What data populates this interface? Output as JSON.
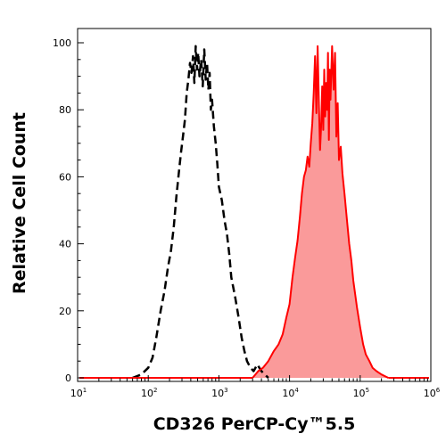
{
  "chart_data": {
    "type": "area",
    "xlabel": "CD326 PerCP-Cy™5.5",
    "ylabel": "Relative Cell Count",
    "x_scale": "log",
    "xlim": [
      10,
      1000000
    ],
    "ylim": [
      0,
      100
    ],
    "x_ticks": [
      {
        "value": 10,
        "base": "10",
        "exp": "1"
      },
      {
        "value": 100,
        "base": "10",
        "exp": "2"
      },
      {
        "value": 1000,
        "base": "10",
        "exp": "3"
      },
      {
        "value": 10000,
        "base": "10",
        "exp": "4"
      },
      {
        "value": 100000,
        "base": "10",
        "exp": "5"
      },
      {
        "value": 1000000,
        "base": "10",
        "exp": "6"
      }
    ],
    "y_ticks": [
      "0",
      "20",
      "40",
      "60",
      "80",
      "100"
    ],
    "y_tick_values": [
      0,
      20,
      40,
      60,
      80,
      100
    ],
    "grid": false,
    "legend": "none",
    "series": [
      {
        "style": "dashed-line",
        "color": "#000000",
        "x": [
          60,
          80,
          100,
          115,
          130,
          150,
          170,
          190,
          210,
          230,
          250,
          270,
          290,
          310,
          330,
          350,
          370,
          390,
          410,
          430,
          450,
          470,
          490,
          510,
          530,
          560,
          590,
          620,
          650,
          680,
          710,
          740,
          770,
          800,
          850,
          900,
          950,
          1000,
          1100,
          1200,
          1300,
          1400,
          1500,
          1700,
          1900,
          2100,
          2300,
          2500,
          2800,
          3100,
          3500,
          4000,
          5000
        ],
        "y": [
          0,
          1,
          3,
          6,
          12,
          20,
          26,
          33,
          38,
          45,
          54,
          61,
          67,
          72,
          77,
          85,
          89,
          94,
          91,
          96,
          88,
          99,
          92,
          97,
          90,
          95,
          87,
          98,
          89,
          94,
          86,
          91,
          80,
          83,
          75,
          70,
          64,
          57,
          53,
          47,
          43,
          37,
          30,
          24,
          18,
          12,
          8,
          5,
          3,
          2,
          4,
          2,
          0
        ]
      },
      {
        "style": "filled-area",
        "color": "#ff0000",
        "fill": "#fa9a9a",
        "x": [
          3000,
          3600,
          4200,
          5000,
          6000,
          7000,
          8000,
          9000,
          10000,
          11000,
          12000,
          13000,
          14000,
          15000,
          16000,
          17000,
          18000,
          19000,
          20000,
          21000,
          22000,
          23000,
          24000,
          25000,
          26000,
          27000,
          28000,
          29000,
          30000,
          31000,
          32000,
          33000,
          34000,
          35000,
          36000,
          37000,
          38000,
          40000,
          42000,
          44000,
          46000,
          48000,
          50000,
          53000,
          56000,
          60000,
          65000,
          70000,
          75000,
          80000,
          90000,
          100000,
          110000,
          120000,
          135000,
          150000,
          170000,
          200000,
          250000
        ],
        "y": [
          0,
          2,
          3,
          5,
          8,
          10,
          13,
          18,
          22,
          30,
          36,
          41,
          48,
          55,
          60,
          62,
          66,
          63,
          70,
          76,
          85,
          96,
          79,
          99,
          82,
          68,
          75,
          87,
          74,
          92,
          78,
          88,
          80,
          97,
          71,
          92,
          83,
          99,
          86,
          97,
          72,
          82,
          65,
          69,
          61,
          55,
          47,
          40,
          35,
          29,
          21,
          15,
          10,
          7,
          5,
          3,
          2,
          1,
          0
        ]
      }
    ]
  }
}
